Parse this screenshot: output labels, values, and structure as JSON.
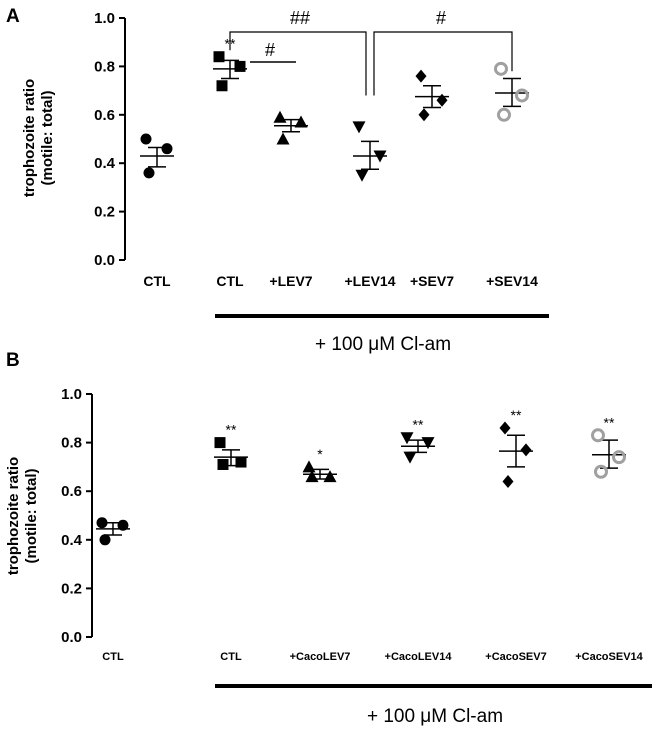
{
  "chart_data": [
    {
      "panel": "A",
      "type": "scatter",
      "ylabel_line1": "trophozoite ratio",
      "ylabel_line2": "(motile: total)",
      "ylim": [
        0.0,
        1.0
      ],
      "yticks": [
        "0.0",
        "0.2",
        "0.4",
        "0.6",
        "0.8",
        "1.0"
      ],
      "categories": [
        "CTL",
        "CTL",
        "+LEV7",
        "+LEV14",
        "+SEV7",
        "+SEV14"
      ],
      "series": [
        {
          "name": "CTL",
          "marker": "circle",
          "color": "#000000",
          "values": [
            0.5,
            0.46,
            0.36
          ],
          "mean": 0.43,
          "sem_low": 0.385,
          "sem_high": 0.465,
          "sig": ""
        },
        {
          "name": "CTL",
          "marker": "square",
          "color": "#000000",
          "values": [
            0.84,
            0.8,
            0.72
          ],
          "mean": 0.79,
          "sem_low": 0.75,
          "sem_high": 0.825,
          "sig": "**"
        },
        {
          "name": "+LEV7",
          "marker": "triangle-up",
          "color": "#000000",
          "values": [
            0.59,
            0.57,
            0.5
          ],
          "mean": 0.555,
          "sem_low": 0.53,
          "sem_high": 0.58,
          "sig": ""
        },
        {
          "name": "+LEV14",
          "marker": "triangle-down",
          "color": "#000000",
          "values": [
            0.55,
            0.43,
            0.35
          ],
          "mean": 0.43,
          "sem_low": 0.375,
          "sem_high": 0.49,
          "sig": ""
        },
        {
          "name": "+SEV7",
          "marker": "diamond",
          "color": "#000000",
          "values": [
            0.76,
            0.66,
            0.6
          ],
          "mean": 0.675,
          "sem_low": 0.63,
          "sem_high": 0.72,
          "sig": ""
        },
        {
          "name": "+SEV14",
          "marker": "open-circle",
          "color": "#a0a0a0",
          "values": [
            0.79,
            0.68,
            0.6
          ],
          "mean": 0.69,
          "sem_low": 0.635,
          "sem_high": 0.75,
          "sig": ""
        }
      ],
      "comparisons": [
        {
          "label": "##",
          "kind": "bracket",
          "from": 1,
          "to": 3
        },
        {
          "label": "#",
          "kind": "bracket",
          "from": 3,
          "to": 5
        },
        {
          "label": "#",
          "kind": "line",
          "from": 1,
          "to": 2
        }
      ],
      "treatment_label": "+ 100 μM Cl-am",
      "treatment_span": [
        1,
        5
      ]
    },
    {
      "panel": "B",
      "type": "scatter",
      "ylabel_line1": "trophozoite ratio",
      "ylabel_line2": "(motile: total)",
      "ylim": [
        0.0,
        1.0
      ],
      "yticks": [
        "0.0",
        "0.2",
        "0.4",
        "0.6",
        "0.8",
        "1.0"
      ],
      "categories": [
        "CTL",
        "CTL",
        "+CacoLEV7",
        "+CacoLEV14",
        "+CacoSEV7",
        "+CacoSEV14"
      ],
      "series": [
        {
          "name": "CTL",
          "marker": "circle",
          "color": "#000000",
          "values": [
            0.47,
            0.46,
            0.4
          ],
          "mean": 0.445,
          "sem_low": 0.42,
          "sem_high": 0.47,
          "sig": ""
        },
        {
          "name": "CTL",
          "marker": "square",
          "color": "#000000",
          "values": [
            0.8,
            0.72,
            0.71
          ],
          "mean": 0.74,
          "sem_low": 0.705,
          "sem_high": 0.77,
          "sig": "**"
        },
        {
          "name": "+CacoLEV7",
          "marker": "triangle-up",
          "color": "#000000",
          "values": [
            0.7,
            0.66,
            0.66
          ],
          "mean": 0.67,
          "sem_low": 0.65,
          "sem_high": 0.69,
          "sig": "*"
        },
        {
          "name": "+CacoLEV14",
          "marker": "triangle-down",
          "color": "#000000",
          "values": [
            0.82,
            0.8,
            0.74
          ],
          "mean": 0.785,
          "sem_low": 0.76,
          "sem_high": 0.81,
          "sig": "**"
        },
        {
          "name": "+CacoSEV7",
          "marker": "diamond",
          "color": "#000000",
          "values": [
            0.86,
            0.77,
            0.64
          ],
          "mean": 0.765,
          "sem_low": 0.7,
          "sem_high": 0.83,
          "sig": "**"
        },
        {
          "name": "+CacoSEV14",
          "marker": "open-circle",
          "color": "#a0a0a0",
          "values": [
            0.83,
            0.74,
            0.68
          ],
          "mean": 0.75,
          "sem_low": 0.695,
          "sem_high": 0.81,
          "sig": "**"
        }
      ],
      "comparisons": [],
      "treatment_label": "+ 100 μM Cl-am",
      "treatment_span": [
        1,
        5
      ]
    }
  ]
}
